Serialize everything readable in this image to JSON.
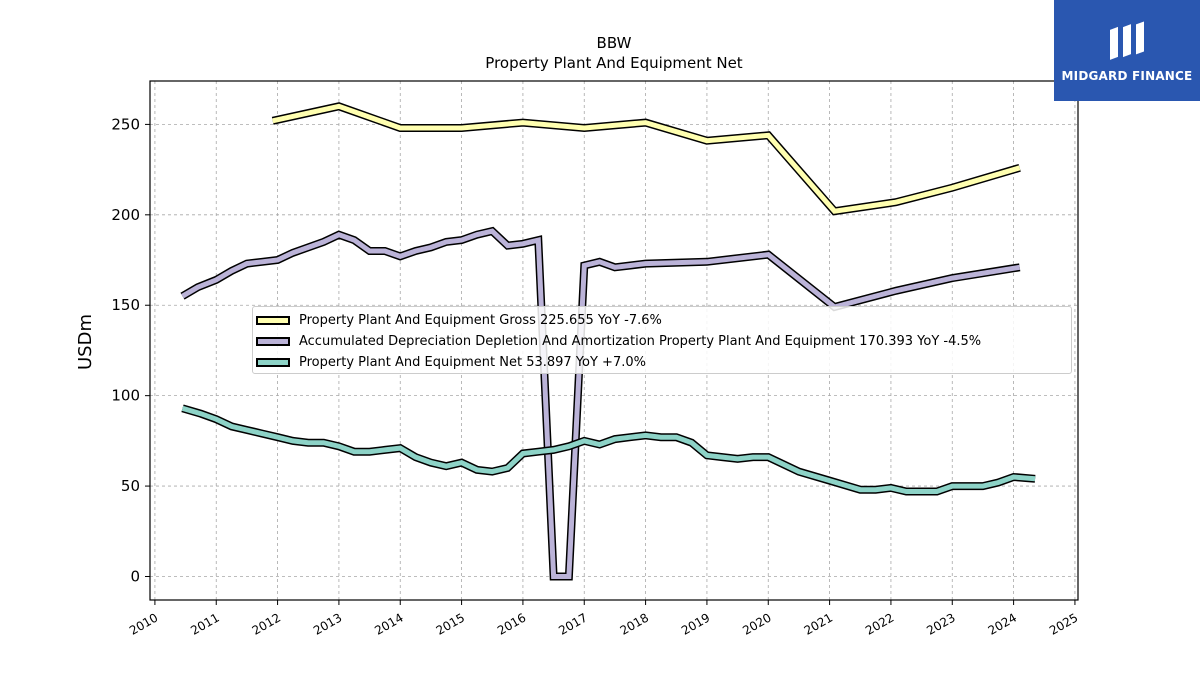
{
  "chart_data": {
    "type": "line",
    "title": "BBW",
    "subtitle": "Property Plant And Equipment Net",
    "ylabel": "USDm",
    "xlabel": "",
    "xlim": [
      2009.92,
      2025.05
    ],
    "ylim": [
      -13,
      274
    ],
    "x_ticks": [
      "2010",
      "2011",
      "2012",
      "2013",
      "2014",
      "2015",
      "2016",
      "2017",
      "2018",
      "2019",
      "2020",
      "2021",
      "2022",
      "2023",
      "2024",
      "2025"
    ],
    "y_ticks": [
      0,
      50,
      100,
      150,
      200,
      250
    ],
    "grid": true,
    "legend_position": "center",
    "series": [
      {
        "name": "Property Plant And Equipment Gross",
        "legend_label": "Property Plant And Equipment Gross  225.655 YoY -7.6%",
        "color": "#ffffb0",
        "x": [
          2011.92,
          2013.0,
          2014.0,
          2015.0,
          2016.0,
          2017.0,
          2018.0,
          2019.0,
          2020.0,
          2021.08,
          2022.08,
          2023.0,
          2024.1
        ],
        "y": [
          252,
          260,
          248,
          248,
          251,
          248,
          251,
          241,
          244,
          202,
          207,
          215,
          226
        ]
      },
      {
        "name": "Accumulated Depreciation Depletion And Amortization Property Plant And Equipment",
        "legend_label": "Accumulated Depreciation Depletion And Amortization Property Plant And Equipment  170.393 YoY -4.5%",
        "color": "#bbb3d8",
        "x": [
          2010.45,
          2010.7,
          2011.0,
          2011.25,
          2011.5,
          2011.75,
          2012.0,
          2012.25,
          2012.5,
          2012.75,
          2013.0,
          2013.25,
          2013.5,
          2013.75,
          2014.0,
          2014.25,
          2014.5,
          2014.75,
          2015.0,
          2015.25,
          2015.5,
          2015.75,
          2016.0,
          2016.25,
          2016.5,
          2016.75,
          2017.0,
          2017.25,
          2017.5,
          2017.75,
          2018.0,
          2019.0,
          2020.0,
          2021.08,
          2022.08,
          2023.0,
          2024.1
        ],
        "y": [
          155,
          160,
          164,
          169,
          173,
          174,
          175,
          179,
          182,
          185,
          189,
          186,
          180,
          180,
          177,
          180,
          182,
          185,
          186,
          189,
          191,
          183,
          184,
          186,
          0,
          0,
          172,
          174,
          171,
          172,
          173,
          174,
          178,
          149,
          158,
          165,
          171
        ]
      },
      {
        "name": "Property Plant And Equipment Net",
        "legend_label": "Property Plant And Equipment Net  53.897 YoY +7.0%",
        "color": "#8dd3c7",
        "x": [
          2010.45,
          2010.75,
          2011.0,
          2011.25,
          2011.5,
          2011.75,
          2012.0,
          2012.25,
          2012.5,
          2012.75,
          2013.0,
          2013.25,
          2013.5,
          2013.75,
          2014.0,
          2014.25,
          2014.5,
          2014.75,
          2015.0,
          2015.25,
          2015.5,
          2015.75,
          2016.0,
          2016.25,
          2016.5,
          2016.75,
          2017.0,
          2017.25,
          2017.5,
          2017.75,
          2018.0,
          2018.25,
          2018.5,
          2018.75,
          2019.0,
          2019.25,
          2019.5,
          2019.75,
          2020.0,
          2020.25,
          2020.5,
          2021.0,
          2021.5,
          2021.75,
          2022.0,
          2022.25,
          2022.5,
          2022.75,
          2023.0,
          2023.25,
          2023.5,
          2023.75,
          2024.0,
          2024.35
        ],
        "y": [
          93,
          90,
          87,
          83,
          81,
          79,
          77,
          75,
          74,
          74,
          72,
          69,
          69,
          70,
          71,
          66,
          63,
          61,
          63,
          59,
          58,
          60,
          68,
          69,
          70,
          72,
          75,
          73,
          76,
          77,
          78,
          77,
          77,
          74,
          67,
          66,
          65,
          66,
          66,
          62,
          58,
          53,
          48,
          48,
          49,
          47,
          47,
          47,
          50,
          50,
          50,
          52,
          55,
          54
        ]
      }
    ]
  },
  "logo": {
    "text": "MIDGARD FINANCE",
    "color": "#2a57b0"
  }
}
